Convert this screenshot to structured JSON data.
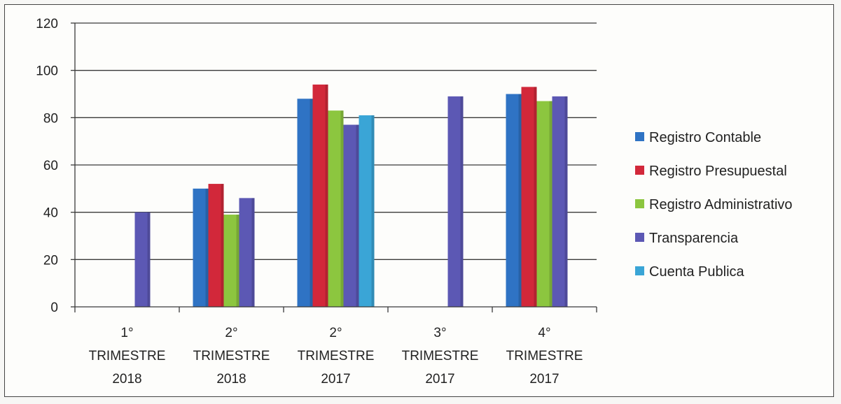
{
  "chart_data": {
    "type": "bar",
    "title": "",
    "xlabel": "",
    "ylabel": "",
    "ylim": [
      0,
      120
    ],
    "yticks": [
      0,
      20,
      40,
      60,
      80,
      100,
      120
    ],
    "grid": true,
    "legend_position": "right",
    "categories": [
      [
        "1°",
        "TRIMESTRE",
        "2018"
      ],
      [
        "2°",
        "TRIMESTRE",
        "2018"
      ],
      [
        "2°",
        "TRIMESTRE",
        "2017"
      ],
      [
        "3°",
        "TRIMESTRE",
        "2017"
      ],
      [
        "4°",
        "TRIMESTRE",
        "2017"
      ]
    ],
    "series": [
      {
        "name": "Registro Contable",
        "color": "#2f73c4",
        "values": [
          null,
          50,
          88,
          null,
          90
        ]
      },
      {
        "name": "Registro Presupuestal",
        "color": "#d2283a",
        "values": [
          null,
          52,
          94,
          null,
          93
        ]
      },
      {
        "name": "Registro Administrativo",
        "color": "#8cc63f",
        "values": [
          null,
          39,
          83,
          null,
          87
        ]
      },
      {
        "name": "Transparencia",
        "color": "#5c58b4",
        "values": [
          40,
          46,
          77,
          89,
          89
        ]
      },
      {
        "name": "Cuenta Publica",
        "color": "#3aa5d6",
        "values": [
          null,
          null,
          81,
          null,
          null
        ]
      }
    ]
  }
}
